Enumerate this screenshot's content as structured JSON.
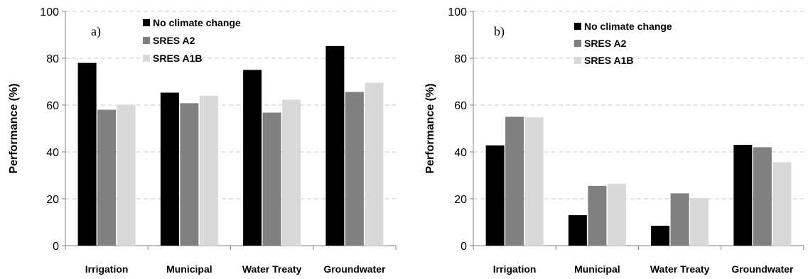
{
  "chart_data": [
    {
      "type": "bar",
      "panel_label": "a)",
      "ylabel": "Performance (%)",
      "ylim": [
        0,
        100
      ],
      "yticks": [
        0,
        20,
        40,
        60,
        80,
        100
      ],
      "grid": "horizontal dashed",
      "legend_position": "top-center",
      "categories": [
        "Irrigation",
        "Municipal",
        "Water Treaty",
        "Groundwater"
      ],
      "series": [
        {
          "name": "No climate change",
          "color": "#000000",
          "values": [
            78,
            65.3,
            75,
            85.2
          ]
        },
        {
          "name": "SRES A2",
          "color": "#808080",
          "values": [
            58,
            60.8,
            56.8,
            65.6
          ]
        },
        {
          "name": "SRES A1B",
          "color": "#d9d9d9",
          "values": [
            60.2,
            64,
            62.3,
            69.5
          ]
        }
      ]
    },
    {
      "type": "bar",
      "panel_label": "b)",
      "ylabel": "Performance (%)",
      "ylim": [
        0,
        100
      ],
      "yticks": [
        0,
        20,
        40,
        60,
        80,
        100
      ],
      "grid": "horizontal dashed",
      "legend_position": "top-center",
      "categories": [
        "Irrigation",
        "Municipal",
        "Water Treaty",
        "Groundwater"
      ],
      "series": [
        {
          "name": "No climate change",
          "color": "#000000",
          "values": [
            42.8,
            13,
            8.5,
            43
          ]
        },
        {
          "name": "SRES A2",
          "color": "#808080",
          "values": [
            55,
            25.5,
            22.3,
            42
          ]
        },
        {
          "name": "SRES A1B",
          "color": "#d9d9d9",
          "values": [
            54.8,
            26.4,
            20.3,
            35.6
          ]
        }
      ]
    }
  ]
}
